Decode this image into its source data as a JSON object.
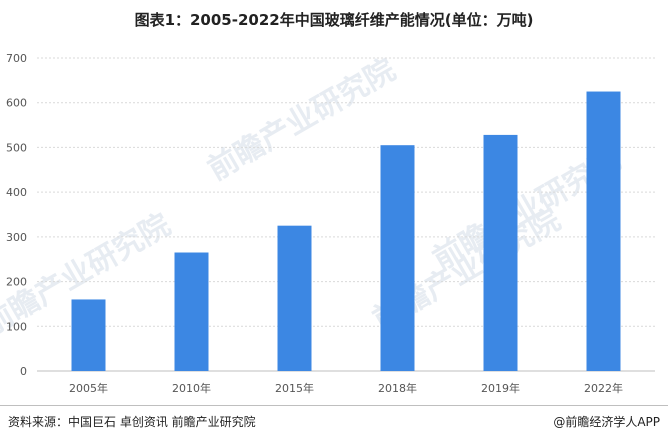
{
  "title": "图表1：2005-2022年中国玻璃纤维产能情况(单位：万吨)",
  "source": "资料来源：中国巨石 卓创资讯 前瞻产业研究院",
  "brand": "@前瞻经济学人APP",
  "watermark": "前瞻产业研究院",
  "colors": {
    "bar": "#3c87e3",
    "grid": "#d9d9d9",
    "axis": "#bfbfbf"
  },
  "chart_data": {
    "type": "bar",
    "categories": [
      "2005年",
      "2010年",
      "2015年",
      "2018年",
      "2019年",
      "2022年"
    ],
    "values": [
      160,
      265,
      325,
      505,
      528,
      625
    ],
    "ylim": [
      0,
      700
    ],
    "yticks": [
      0,
      100,
      200,
      300,
      400,
      500,
      600,
      700
    ],
    "grid": true,
    "legend": "none"
  }
}
